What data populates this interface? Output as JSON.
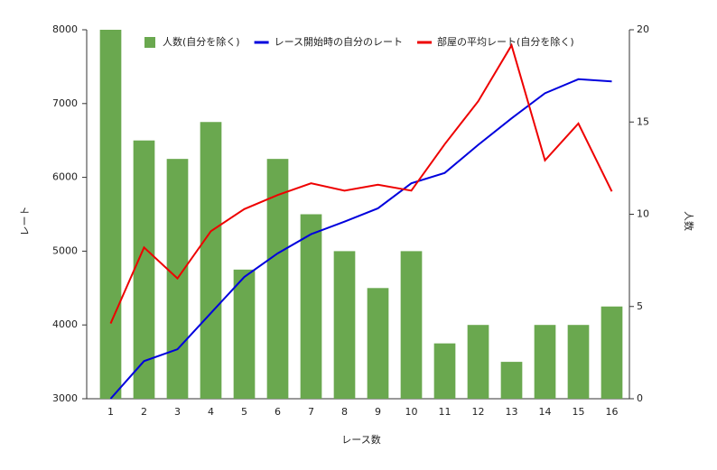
{
  "chart_data": {
    "type": "bar",
    "x_label": "レース数",
    "y_label": "レート",
    "y2_label": "人数",
    "categories": [
      "1",
      "2",
      "3",
      "4",
      "5",
      "6",
      "7",
      "8",
      "9",
      "10",
      "11",
      "12",
      "13",
      "14",
      "15",
      "16"
    ],
    "series": [
      {
        "name": "人数(自分を除く)",
        "type": "bar",
        "axis": "y2",
        "color": "#6aa84f",
        "values": [
          20,
          14,
          13,
          15,
          7,
          13,
          10,
          8,
          6,
          8,
          3,
          4,
          2,
          4,
          4,
          5
        ]
      },
      {
        "name": "レース開始時の自分のレート",
        "type": "line",
        "color": "#0000dd",
        "values": [
          3000,
          3510,
          3670,
          4160,
          4650,
          4970,
          5230,
          5400,
          5580,
          5920,
          6060,
          6440,
          6800,
          7140,
          7330,
          7300
        ]
      },
      {
        "name": "部屋の平均レート(自分を除く)",
        "type": "line",
        "color": "#ee0000",
        "values": [
          4020,
          5050,
          4630,
          5270,
          5570,
          5760,
          5920,
          5820,
          5900,
          5820,
          6450,
          7030,
          7790,
          6230,
          6730,
          5810
        ]
      }
    ],
    "ylim": [
      3000,
      8000
    ],
    "yticks": [
      3000,
      4000,
      5000,
      6000,
      7000,
      8000
    ],
    "y2lim": [
      0,
      20
    ],
    "y2ticks": [
      0,
      5,
      10,
      15,
      20
    ]
  }
}
